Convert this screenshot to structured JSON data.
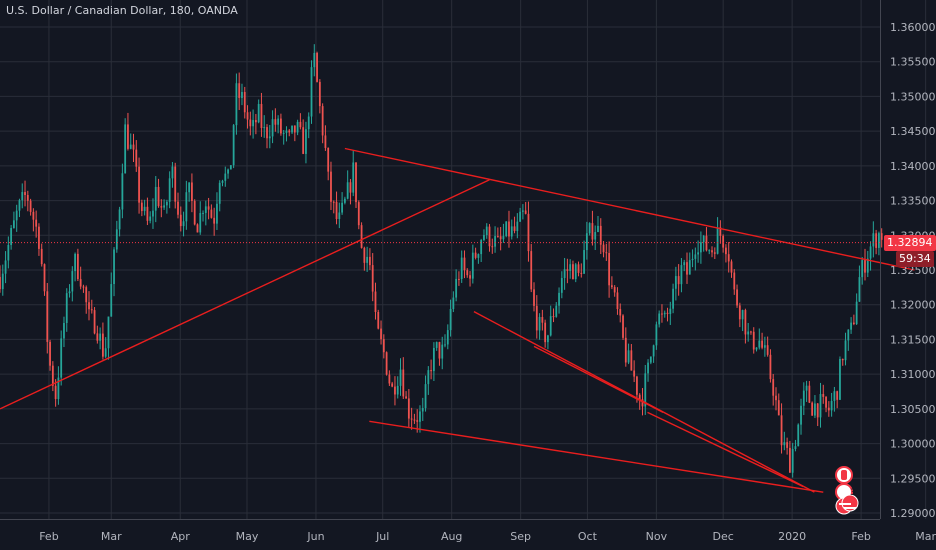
{
  "window": {
    "title": "U.S. Dollar / Canadian Dollar, 180, OANDA"
  },
  "price": {
    "last": "1.32894",
    "timer": "59:34"
  },
  "events": {
    "badge_count": "3"
  },
  "colors": {
    "background": "#131722",
    "grid": "#2a2e39",
    "up": "#26a69a",
    "down": "#ef5350",
    "trendline": "#e91e1e",
    "price_line": "#f23645"
  },
  "chart_data": {
    "type": "candlestick",
    "title": "U.S. Dollar / Canadian Dollar, 180, OANDA",
    "x_tick_labels": [
      "Feb",
      "Mar",
      "Apr",
      "May",
      "Jun",
      "Jul",
      "Aug",
      "Sep",
      "Oct",
      "Nov",
      "Dec",
      "2020",
      "Feb",
      "Mar"
    ],
    "y_tick_labels": [
      "1.36000",
      "1.35500",
      "1.35000",
      "1.34500",
      "1.34000",
      "1.33500",
      "1.33000",
      "1.32500",
      "1.32000",
      "1.31500",
      "1.31000",
      "1.30500",
      "1.30000",
      "1.29500",
      "1.29000"
    ],
    "ylim": [
      1.2895,
      1.3625
    ],
    "xlim": [
      "2019-01-10",
      "2020-03-05"
    ],
    "last_price": 1.32894,
    "grid": true,
    "path": [
      [
        "2019-01-10",
        1.324
      ],
      [
        "2019-01-18",
        1.3335
      ],
      [
        "2019-01-22",
        1.336
      ],
      [
        "2019-01-28",
        1.329
      ],
      [
        "2019-02-01",
        1.312
      ],
      [
        "2019-02-04",
        1.307
      ],
      [
        "2019-02-08",
        1.318
      ],
      [
        "2019-02-12",
        1.3265
      ],
      [
        "2019-02-15",
        1.3245
      ],
      [
        "2019-02-19",
        1.318
      ],
      [
        "2019-02-22",
        1.3175
      ],
      [
        "2019-02-26",
        1.3125
      ],
      [
        "2019-03-01",
        1.3225
      ],
      [
        "2019-03-05",
        1.3355
      ],
      [
        "2019-03-07",
        1.3455
      ],
      [
        "2019-03-11",
        1.341
      ],
      [
        "2019-03-14",
        1.3345
      ],
      [
        "2019-03-18",
        1.331
      ],
      [
        "2019-03-21",
        1.3365
      ],
      [
        "2019-03-25",
        1.3325
      ],
      [
        "2019-03-28",
        1.34
      ],
      [
        "2019-04-01",
        1.332
      ],
      [
        "2019-04-05",
        1.336
      ],
      [
        "2019-04-09",
        1.3315
      ],
      [
        "2019-04-12",
        1.3355
      ],
      [
        "2019-04-16",
        1.332
      ],
      [
        "2019-04-19",
        1.3395
      ],
      [
        "2019-04-23",
        1.3375
      ],
      [
        "2019-04-26",
        1.3505
      ],
      [
        "2019-04-29",
        1.3495
      ],
      [
        "2019-05-03",
        1.3445
      ],
      [
        "2019-05-06",
        1.3475
      ],
      [
        "2019-05-09",
        1.3445
      ],
      [
        "2019-05-13",
        1.3465
      ],
      [
        "2019-05-16",
        1.345
      ],
      [
        "2019-05-20",
        1.3435
      ],
      [
        "2019-05-23",
        1.3455
      ],
      [
        "2019-05-27",
        1.3425
      ],
      [
        "2019-05-31",
        1.356
      ],
      [
        "2019-06-03",
        1.3475
      ],
      [
        "2019-06-05",
        1.343
      ],
      [
        "2019-06-07",
        1.336
      ],
      [
        "2019-06-11",
        1.3315
      ],
      [
        "2019-06-14",
        1.3345
      ],
      [
        "2019-06-18",
        1.3395
      ],
      [
        "2019-06-21",
        1.3285
      ],
      [
        "2019-06-25",
        1.3265
      ],
      [
        "2019-06-28",
        1.3165
      ],
      [
        "2019-07-02",
        1.3125
      ],
      [
        "2019-07-05",
        1.3075
      ],
      [
        "2019-07-09",
        1.311
      ],
      [
        "2019-07-12",
        1.305
      ],
      [
        "2019-07-15",
        1.304
      ],
      [
        "2019-07-19",
        1.304
      ],
      [
        "2019-07-22",
        1.311
      ],
      [
        "2019-07-25",
        1.3135
      ],
      [
        "2019-07-29",
        1.313
      ],
      [
        "2019-08-01",
        1.3205
      ],
      [
        "2019-08-05",
        1.3255
      ],
      [
        "2019-08-08",
        1.324
      ],
      [
        "2019-08-12",
        1.3275
      ],
      [
        "2019-08-15",
        1.3305
      ],
      [
        "2019-08-19",
        1.3295
      ],
      [
        "2019-08-22",
        1.3285
      ],
      [
        "2019-08-26",
        1.3305
      ],
      [
        "2019-08-30",
        1.3305
      ],
      [
        "2019-09-03",
        1.3335
      ],
      [
        "2019-09-06",
        1.3205
      ],
      [
        "2019-09-10",
        1.316
      ],
      [
        "2019-09-13",
        1.3155
      ],
      [
        "2019-09-17",
        1.3205
      ],
      [
        "2019-09-20",
        1.3245
      ],
      [
        "2019-09-24",
        1.3255
      ],
      [
        "2019-09-27",
        1.324
      ],
      [
        "2019-10-01",
        1.3295
      ],
      [
        "2019-10-04",
        1.3315
      ],
      [
        "2019-10-08",
        1.3295
      ],
      [
        "2019-10-11",
        1.3235
      ],
      [
        "2019-10-15",
        1.318
      ],
      [
        "2019-10-18",
        1.313
      ],
      [
        "2019-10-22",
        1.3095
      ],
      [
        "2019-10-25",
        1.306
      ],
      [
        "2019-10-29",
        1.3115
      ],
      [
        "2019-11-01",
        1.3185
      ],
      [
        "2019-11-05",
        1.3175
      ],
      [
        "2019-11-08",
        1.3205
      ],
      [
        "2019-11-12",
        1.325
      ],
      [
        "2019-11-15",
        1.3245
      ],
      [
        "2019-11-19",
        1.3295
      ],
      [
        "2019-11-22",
        1.3285
      ],
      [
        "2019-11-26",
        1.328
      ],
      [
        "2019-11-29",
        1.3305
      ],
      [
        "2019-12-03",
        1.3285
      ],
      [
        "2019-12-06",
        1.3215
      ],
      [
        "2019-12-10",
        1.3185
      ],
      [
        "2019-12-13",
        1.3145
      ],
      [
        "2019-12-17",
        1.315
      ],
      [
        "2019-12-20",
        1.3125
      ],
      [
        "2019-12-24",
        1.3075
      ],
      [
        "2019-12-27",
        1.3005
      ],
      [
        "2019-12-31",
        1.2975
      ],
      [
        "2020-01-03",
        1.3015
      ],
      [
        "2020-01-07",
        1.3075
      ],
      [
        "2020-01-10",
        1.3055
      ],
      [
        "2020-01-14",
        1.3055
      ],
      [
        "2020-01-17",
        1.3045
      ],
      [
        "2020-01-21",
        1.3075
      ],
      [
        "2020-01-24",
        1.3135
      ],
      [
        "2020-01-28",
        1.3165
      ],
      [
        "2020-01-31",
        1.3235
      ],
      [
        "2020-02-04",
        1.3275
      ],
      [
        "2020-02-07",
        1.3295
      ],
      [
        "2020-02-10",
        1.3305
      ],
      [
        "2020-02-11",
        1.3295
      ]
    ],
    "trendlines": [
      {
        "from": [
          "2019-01-10",
          1.305
        ],
        "to": [
          "2019-08-18",
          1.338
        ]
      },
      {
        "from": [
          "2019-06-14",
          1.3425
        ],
        "to": [
          "2020-02-25",
          1.325
        ]
      },
      {
        "from": [
          "2019-08-11",
          1.319
        ],
        "to": [
          "2020-01-11",
          1.293
        ]
      },
      {
        "from": [
          "2019-06-25",
          1.3032
        ],
        "to": [
          "2020-01-15",
          1.293
        ]
      },
      {
        "from": [
          "2019-09-07",
          1.314
        ],
        "to": [
          "2019-11-04",
          1.3045
        ]
      },
      {
        "from": [
          "2019-10-28",
          1.3045
        ],
        "to": [
          "2020-01-06",
          1.2938
        ]
      }
    ]
  }
}
